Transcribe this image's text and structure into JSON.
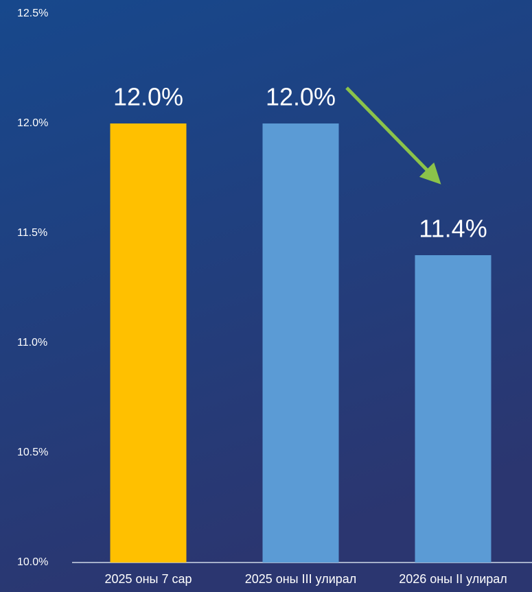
{
  "chart_data": {
    "type": "bar",
    "categories": [
      "2025 оны 7 сар",
      "2025 оны III улирал",
      "2026 оны II улирал"
    ],
    "values": [
      12.0,
      12.0,
      11.4
    ],
    "value_labels": [
      "12.0%",
      "12.0%",
      "11.4%"
    ],
    "colors": [
      "#ffc000",
      "#5b9bd5",
      "#5b9bd5"
    ],
    "ylim": [
      10.0,
      12.5
    ],
    "yticks": [
      {
        "value": 10.0,
        "label": "10.0%"
      },
      {
        "value": 10.5,
        "label": "10.5%"
      },
      {
        "value": 11.0,
        "label": "11.0%"
      },
      {
        "value": 11.5,
        "label": "11.5%"
      },
      {
        "value": 12.0,
        "label": "12.0%"
      },
      {
        "value": 12.5,
        "label": "12.5%"
      }
    ],
    "grid": false
  }
}
